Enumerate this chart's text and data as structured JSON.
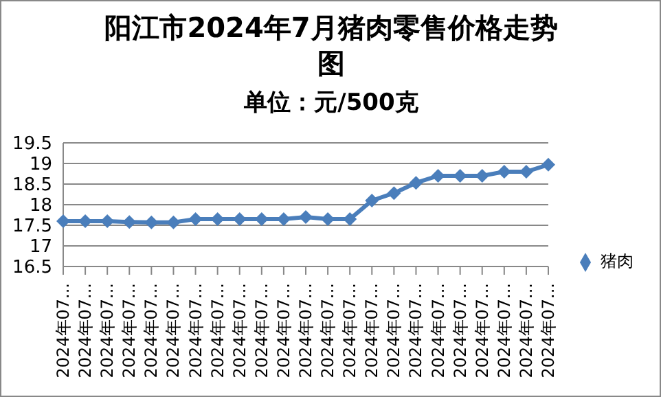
{
  "chart_data": {
    "type": "line",
    "title": "阳江市2024年7月猪肉零售价格走势图",
    "subtitle": "单位：元/500克",
    "categories": [
      "2024年07...",
      "2024年07...",
      "2024年07...",
      "2024年07...",
      "2024年07...",
      "2024年07...",
      "2024年07...",
      "2024年07...",
      "2024年07...",
      "2024年07...",
      "2024年07...",
      "2024年07...",
      "2024年07...",
      "2024年07...",
      "2024年07...",
      "2024年07...",
      "2024年07...",
      "2024年07...",
      "2024年07...",
      "2024年07...",
      "2024年07...",
      "2024年07...",
      "2024年07..."
    ],
    "series": [
      {
        "name": "猪肉",
        "color": "#4a7ebb",
        "values": [
          17.6,
          17.6,
          17.6,
          17.58,
          17.57,
          17.57,
          17.65,
          17.65,
          17.65,
          17.65,
          17.65,
          17.7,
          17.65,
          17.65,
          18.1,
          18.28,
          18.53,
          18.7,
          18.7,
          18.7,
          18.8,
          18.8,
          18.97
        ]
      }
    ],
    "ylim": [
      16.5,
      19.5
    ],
    "yticks": [
      16.5,
      17,
      17.5,
      18,
      18.5,
      19,
      19.5
    ],
    "grid": "y",
    "legend": "right",
    "marker": "diamond",
    "line_style": "solid"
  }
}
